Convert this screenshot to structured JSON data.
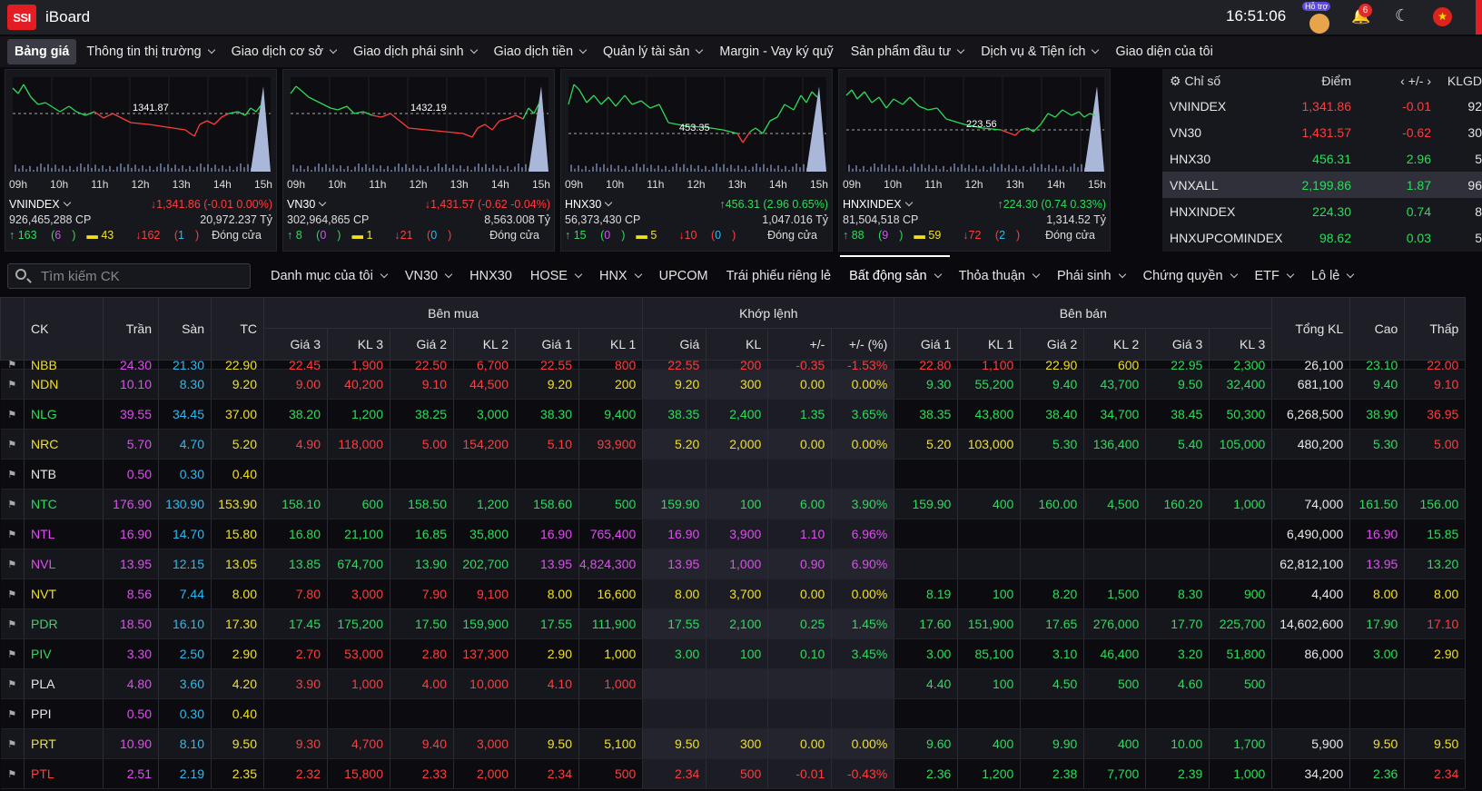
{
  "app": {
    "logo": "SSI",
    "title": "iBoard",
    "time": "16:51:06",
    "help_label": "Hỗ trợ",
    "notif_count": "6"
  },
  "colors": {
    "up": "#2ddc5a",
    "down": "#ff3d3d",
    "ref": "#f0e024",
    "ceiling": "#e14cf2",
    "floor": "#2cb9f0"
  },
  "menu": [
    "Bảng giá",
    "Thông tin thị trường",
    "Giao dịch cơ sở",
    "Giao dịch phái sinh",
    "Giao dịch tiền",
    "Quản lý tài sản",
    "Margin - Vay ký quỹ",
    "Sản phẩm đầu tư",
    "Dịch vụ & Tiện ích",
    "Giao diện của tôi"
  ],
  "chart_data": [
    {
      "type": "line",
      "name": "VNINDEX",
      "ref_label": "1341.87",
      "ticks": [
        "09h",
        "10h",
        "11h",
        "12h",
        "13h",
        "14h",
        "15h"
      ],
      "value": "1,341.86 (-0.01 0.00%)",
      "trend": "down",
      "volume": "926,465,288 CP",
      "value_traded": "20,972.237 Tỷ",
      "advancers": "163",
      "ceiling_count": "6",
      "unchanged": "43",
      "decliners": "162",
      "floor_count": "1",
      "status": "Đóng cửa"
    },
    {
      "type": "line",
      "name": "VN30",
      "ref_label": "1432.19",
      "ticks": [
        "09h",
        "10h",
        "11h",
        "12h",
        "13h",
        "14h",
        "15h"
      ],
      "value": "1,431.57 (-0.62 -0.04%)",
      "trend": "down",
      "volume": "302,964,865 CP",
      "value_traded": "8,563.008 Tỷ",
      "advancers": "8",
      "ceiling_count": "0",
      "unchanged": "1",
      "decliners": "21",
      "floor_count": "0",
      "status": "Đóng cửa"
    },
    {
      "type": "line",
      "name": "HNX30",
      "ref_label": "453.35",
      "ticks": [
        "09h",
        "10h",
        "11h",
        "12h",
        "13h",
        "14h",
        "15h"
      ],
      "value": "456.31 (2.96 0.65%)",
      "trend": "up",
      "volume": "56,373,430 CP",
      "value_traded": "1,047.016 Tỷ",
      "advancers": "15",
      "ceiling_count": "0",
      "unchanged": "5",
      "decliners": "10",
      "floor_count": "0",
      "status": "Đóng cửa"
    },
    {
      "type": "line",
      "name": "HNXINDEX",
      "ref_label": "223.56",
      "ticks": [
        "09h",
        "10h",
        "11h",
        "12h",
        "13h",
        "14h",
        "15h"
      ],
      "value": "224.30 (0.74 0.33%)",
      "trend": "up",
      "volume": "81,504,518 CP",
      "value_traded": "1,314.52 Tỷ",
      "advancers": "88",
      "ceiling_count": "9",
      "unchanged": "59",
      "decliners": "72",
      "floor_count": "2",
      "status": "Đóng cửa"
    }
  ],
  "index_table": {
    "headers": [
      "Chỉ số",
      "Điểm",
      "‹ +/- ›",
      "KLGD"
    ],
    "rows": [
      {
        "name": "VNINDEX",
        "point": "1,341.86",
        "change": "-0.01",
        "vol": "92",
        "trend": "dn"
      },
      {
        "name": "VN30",
        "point": "1,431.57",
        "change": "-0.62",
        "vol": "30",
        "trend": "dn"
      },
      {
        "name": "HNX30",
        "point": "456.31",
        "change": "2.96",
        "vol": "5",
        "trend": "up"
      },
      {
        "name": "VNXALL",
        "point": "2,199.86",
        "change": "1.87",
        "vol": "96",
        "trend": "up"
      },
      {
        "name": "HNXINDEX",
        "point": "224.30",
        "change": "0.74",
        "vol": "8",
        "trend": "up"
      },
      {
        "name": "HNXUPCOMINDEX",
        "point": "98.62",
        "change": "0.03",
        "vol": "5",
        "trend": "up"
      }
    ]
  },
  "search": {
    "placeholder": "Tìm kiếm CK"
  },
  "tabs": [
    {
      "label": "Danh mục của tôi",
      "dd": true
    },
    {
      "label": "VN30",
      "dd": true
    },
    {
      "label": "HNX30",
      "dd": false
    },
    {
      "label": "HOSE",
      "dd": true
    },
    {
      "label": "HNX",
      "dd": true
    },
    {
      "label": "UPCOM",
      "dd": false
    },
    {
      "label": "Trái phiếu riêng lẻ",
      "dd": false
    },
    {
      "label": "Bất động sản",
      "dd": true,
      "active": true
    },
    {
      "label": "Thỏa thuận",
      "dd": true
    },
    {
      "label": "Phái sinh",
      "dd": true
    },
    {
      "label": "Chứng quyền",
      "dd": true
    },
    {
      "label": "ETF",
      "dd": true
    },
    {
      "label": "Lô lẻ",
      "dd": true
    }
  ],
  "board": {
    "group_headers": [
      "Bên mua",
      "Khớp lệnh",
      "Bên bán"
    ],
    "fixed_headers": [
      "CK",
      "Trần",
      "Sàn",
      "TC"
    ],
    "sub_headers": [
      "Giá 3",
      "KL 3",
      "Giá 2",
      "KL 2",
      "Giá 1",
      "KL 1",
      "Giá",
      "KL",
      "+/-",
      "+/- (%)",
      "Giá 1",
      "KL 1",
      "Giá 2",
      "KL 2",
      "Giá 3",
      "KL 3"
    ],
    "tail_headers": [
      "Tổng KL",
      "Cao",
      "Thấp"
    ],
    "rows": [
      {
        "c": "NBB",
        "t": "24.30",
        "s": "21.30",
        "r": "22.90",
        "b": [
          [
            "22.45",
            "1,900",
            "d"
          ],
          [
            "22.50",
            "6,700",
            "d"
          ],
          [
            "22.55",
            "800",
            "d"
          ]
        ],
        "m": [
          "22.55",
          "200",
          "-0.35",
          "-1.53%",
          "d"
        ],
        "a": [
          [
            "22.80",
            "1,100",
            "d"
          ],
          [
            "22.90",
            "600",
            "r"
          ],
          [
            "22.95",
            "2,300",
            "u"
          ]
        ],
        "tot": "26,100",
        "hi": [
          "23.10",
          "u"
        ],
        "lo": [
          "22.00",
          "d"
        ],
        "cc": "r"
      },
      {
        "c": "NDN",
        "t": "10.10",
        "s": "8.30",
        "r": "9.20",
        "b": [
          [
            "9.00",
            "40,200",
            "d"
          ],
          [
            "9.10",
            "44,500",
            "d"
          ],
          [
            "9.20",
            "200",
            "r"
          ]
        ],
        "m": [
          "9.20",
          "300",
          "0.00",
          "0.00%",
          "r"
        ],
        "a": [
          [
            "9.30",
            "55,200",
            "u"
          ],
          [
            "9.40",
            "43,700",
            "u"
          ],
          [
            "9.50",
            "32,400",
            "u"
          ]
        ],
        "tot": "681,100",
        "hi": [
          "9.40",
          "u"
        ],
        "lo": [
          "9.10",
          "d"
        ],
        "cc": "r"
      },
      {
        "c": "NLG",
        "t": "39.55",
        "s": "34.45",
        "r": "37.00",
        "b": [
          [
            "38.20",
            "1,200",
            "u"
          ],
          [
            "38.25",
            "3,000",
            "u"
          ],
          [
            "38.30",
            "9,400",
            "u"
          ]
        ],
        "m": [
          "38.35",
          "2,400",
          "1.35",
          "3.65%",
          "u"
        ],
        "a": [
          [
            "38.35",
            "43,800",
            "u"
          ],
          [
            "38.40",
            "34,700",
            "u"
          ],
          [
            "38.45",
            "50,300",
            "u"
          ]
        ],
        "tot": "6,268,500",
        "hi": [
          "38.90",
          "u"
        ],
        "lo": [
          "36.95",
          "d"
        ],
        "cc": "u"
      },
      {
        "c": "NRC",
        "t": "5.70",
        "s": "4.70",
        "r": "5.20",
        "b": [
          [
            "4.90",
            "118,000",
            "d"
          ],
          [
            "5.00",
            "154,200",
            "d"
          ],
          [
            "5.10",
            "93,900",
            "d"
          ]
        ],
        "m": [
          "5.20",
          "2,000",
          "0.00",
          "0.00%",
          "r"
        ],
        "a": [
          [
            "5.20",
            "103,000",
            "r"
          ],
          [
            "5.30",
            "136,400",
            "u"
          ],
          [
            "5.40",
            "105,000",
            "u"
          ]
        ],
        "tot": "480,200",
        "hi": [
          "5.30",
          "u"
        ],
        "lo": [
          "5.00",
          "d"
        ],
        "cc": "r"
      },
      {
        "c": "NTB",
        "t": "0.50",
        "s": "0.30",
        "r": "0.40",
        "b": [
          [
            "",
            "",
            ""
          ],
          [
            "",
            "",
            ""
          ],
          [
            "",
            "",
            ""
          ]
        ],
        "m": [
          "",
          "",
          "",
          "",
          ""
        ],
        "a": [
          [
            "",
            "",
            ""
          ],
          [
            "",
            "",
            ""
          ],
          [
            "",
            "",
            ""
          ]
        ],
        "tot": "",
        "hi": [
          "",
          ""
        ],
        "lo": [
          "",
          ""
        ],
        "cc": "w"
      },
      {
        "c": "NTC",
        "t": "176.90",
        "s": "130.90",
        "r": "153.90",
        "b": [
          [
            "158.10",
            "600",
            "u"
          ],
          [
            "158.50",
            "1,200",
            "u"
          ],
          [
            "158.60",
            "500",
            "u"
          ]
        ],
        "m": [
          "159.90",
          "100",
          "6.00",
          "3.90%",
          "u"
        ],
        "a": [
          [
            "159.90",
            "400",
            "u"
          ],
          [
            "160.00",
            "4,500",
            "u"
          ],
          [
            "160.20",
            "1,000",
            "u"
          ]
        ],
        "tot": "74,000",
        "hi": [
          "161.50",
          "u"
        ],
        "lo": [
          "156.00",
          "u"
        ],
        "cc": "u"
      },
      {
        "c": "NTL",
        "t": "16.90",
        "s": "14.70",
        "r": "15.80",
        "b": [
          [
            "16.80",
            "21,100",
            "u"
          ],
          [
            "16.85",
            "35,800",
            "u"
          ],
          [
            "16.90",
            "765,400",
            "c"
          ]
        ],
        "m": [
          "16.90",
          "3,900",
          "1.10",
          "6.96%",
          "c"
        ],
        "a": [
          [
            "",
            "",
            ""
          ],
          [
            "",
            "",
            ""
          ],
          [
            "",
            "",
            ""
          ]
        ],
        "tot": "6,490,000",
        "hi": [
          "16.90",
          "c"
        ],
        "lo": [
          "15.85",
          "u"
        ],
        "cc": "c"
      },
      {
        "c": "NVL",
        "t": "13.95",
        "s": "12.15",
        "r": "13.05",
        "b": [
          [
            "13.85",
            "674,700",
            "u"
          ],
          [
            "13.90",
            "202,700",
            "u"
          ],
          [
            "13.95",
            "4,824,300",
            "c"
          ]
        ],
        "m": [
          "13.95",
          "1,000",
          "0.90",
          "6.90%",
          "c"
        ],
        "a": [
          [
            "",
            "",
            ""
          ],
          [
            "",
            "",
            ""
          ],
          [
            "",
            "",
            ""
          ]
        ],
        "tot": "62,812,100",
        "hi": [
          "13.95",
          "c"
        ],
        "lo": [
          "13.20",
          "u"
        ],
        "cc": "c"
      },
      {
        "c": "NVT",
        "t": "8.56",
        "s": "7.44",
        "r": "8.00",
        "b": [
          [
            "7.80",
            "3,000",
            "d"
          ],
          [
            "7.90",
            "9,100",
            "d"
          ],
          [
            "8.00",
            "16,600",
            "r"
          ]
        ],
        "m": [
          "8.00",
          "3,700",
          "0.00",
          "0.00%",
          "r"
        ],
        "a": [
          [
            "8.19",
            "100",
            "u"
          ],
          [
            "8.20",
            "1,500",
            "u"
          ],
          [
            "8.30",
            "900",
            "u"
          ]
        ],
        "tot": "4,400",
        "hi": [
          "8.00",
          "r"
        ],
        "lo": [
          "8.00",
          "r"
        ],
        "cc": "r"
      },
      {
        "c": "PDR",
        "t": "18.50",
        "s": "16.10",
        "r": "17.30",
        "b": [
          [
            "17.45",
            "175,200",
            "u"
          ],
          [
            "17.50",
            "159,900",
            "u"
          ],
          [
            "17.55",
            "111,900",
            "u"
          ]
        ],
        "m": [
          "17.55",
          "2,100",
          "0.25",
          "1.45%",
          "u"
        ],
        "a": [
          [
            "17.60",
            "151,900",
            "u"
          ],
          [
            "17.65",
            "276,000",
            "u"
          ],
          [
            "17.70",
            "225,700",
            "u"
          ]
        ],
        "tot": "14,602,600",
        "hi": [
          "17.90",
          "u"
        ],
        "lo": [
          "17.10",
          "d"
        ],
        "cc": "u"
      },
      {
        "c": "PIV",
        "t": "3.30",
        "s": "2.50",
        "r": "2.90",
        "b": [
          [
            "2.70",
            "53,000",
            "d"
          ],
          [
            "2.80",
            "137,300",
            "d"
          ],
          [
            "2.90",
            "1,000",
            "r"
          ]
        ],
        "m": [
          "3.00",
          "100",
          "0.10",
          "3.45%",
          "u"
        ],
        "a": [
          [
            "3.00",
            "85,100",
            "u"
          ],
          [
            "3.10",
            "46,400",
            "u"
          ],
          [
            "3.20",
            "51,800",
            "u"
          ]
        ],
        "tot": "86,000",
        "hi": [
          "3.00",
          "u"
        ],
        "lo": [
          "2.90",
          "r"
        ],
        "cc": "u"
      },
      {
        "c": "PLA",
        "t": "4.80",
        "s": "3.60",
        "r": "4.20",
        "b": [
          [
            "3.90",
            "1,000",
            "d"
          ],
          [
            "4.00",
            "10,000",
            "d"
          ],
          [
            "4.10",
            "1,000",
            "d"
          ]
        ],
        "m": [
          "",
          "",
          "",
          "",
          ""
        ],
        "a": [
          [
            "4.40",
            "100",
            "u"
          ],
          [
            "4.50",
            "500",
            "u"
          ],
          [
            "4.60",
            "500",
            "u"
          ]
        ],
        "tot": "",
        "hi": [
          "",
          ""
        ],
        "lo": [
          "",
          ""
        ],
        "cc": "w"
      },
      {
        "c": "PPI",
        "t": "0.50",
        "s": "0.30",
        "r": "0.40",
        "b": [
          [
            "",
            "",
            ""
          ],
          [
            "",
            "",
            ""
          ],
          [
            "",
            "",
            ""
          ]
        ],
        "m": [
          "",
          "",
          "",
          "",
          ""
        ],
        "a": [
          [
            "",
            "",
            ""
          ],
          [
            "",
            "",
            ""
          ],
          [
            "",
            "",
            ""
          ]
        ],
        "tot": "",
        "hi": [
          "",
          ""
        ],
        "lo": [
          "",
          ""
        ],
        "cc": "w"
      },
      {
        "c": "PRT",
        "t": "10.90",
        "s": "8.10",
        "r": "9.50",
        "b": [
          [
            "9.30",
            "4,700",
            "d"
          ],
          [
            "9.40",
            "3,000",
            "d"
          ],
          [
            "9.50",
            "5,100",
            "r"
          ]
        ],
        "m": [
          "9.50",
          "300",
          "0.00",
          "0.00%",
          "r"
        ],
        "a": [
          [
            "9.60",
            "400",
            "u"
          ],
          [
            "9.90",
            "400",
            "u"
          ],
          [
            "10.00",
            "1,700",
            "u"
          ]
        ],
        "tot": "5,900",
        "hi": [
          "9.50",
          "r"
        ],
        "lo": [
          "9.50",
          "r"
        ],
        "cc": "r"
      },
      {
        "c": "PTL",
        "t": "2.51",
        "s": "2.19",
        "r": "2.35",
        "b": [
          [
            "2.32",
            "15,800",
            "d"
          ],
          [
            "2.33",
            "2,000",
            "d"
          ],
          [
            "2.34",
            "500",
            "d"
          ]
        ],
        "m": [
          "2.34",
          "500",
          "-0.01",
          "-0.43%",
          "d"
        ],
        "a": [
          [
            "2.36",
            "1,200",
            "u"
          ],
          [
            "2.38",
            "7,700",
            "u"
          ],
          [
            "2.39",
            "1,000",
            "u"
          ]
        ],
        "tot": "34,200",
        "hi": [
          "2.36",
          "u"
        ],
        "lo": [
          "2.34",
          "d"
        ],
        "cc": "d"
      }
    ]
  }
}
